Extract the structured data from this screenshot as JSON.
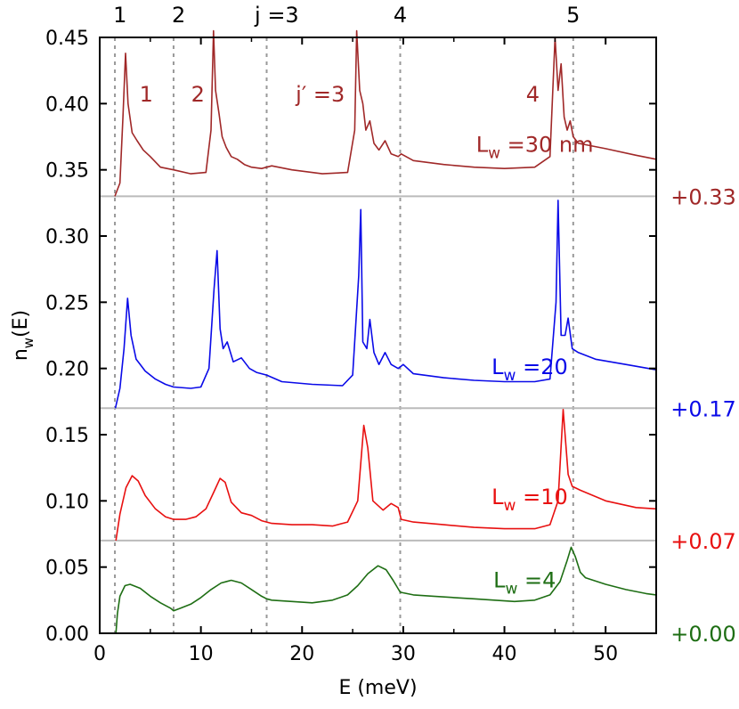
{
  "chart_data": {
    "type": "line",
    "title": "",
    "xlabel": "E (meV)",
    "ylabel_main": "n",
    "ylabel_sub": "w",
    "ylabel_tail": "(E)",
    "xlim": [
      0,
      55
    ],
    "ylim": [
      0,
      0.45
    ],
    "xticks": [
      0,
      10,
      20,
      30,
      40,
      50
    ],
    "yticks": [
      0.0,
      0.05,
      0.1,
      0.15,
      0.2,
      0.25,
      0.3,
      0.35,
      0.4,
      0.45
    ],
    "ytick_labels": [
      "0.00",
      "0.05",
      "0.10",
      "0.15",
      "0.20",
      "0.25",
      "0.30",
      "0.35",
      "0.40",
      "0.45"
    ],
    "xtick_labels": [
      "0",
      "10",
      "20",
      "30",
      "40",
      "50"
    ],
    "vlines": [
      1.5,
      7.3,
      16.5,
      29.7,
      46.8
    ],
    "top_labels": [
      {
        "text": "1",
        "x": 2.0
      },
      {
        "text": "2",
        "x": 7.8
      },
      {
        "text": "j =3",
        "x": 17.5
      },
      {
        "text": "4",
        "x": 29.7
      },
      {
        "text": "5",
        "x": 46.8
      }
    ],
    "series": [
      {
        "name": "Lw=4",
        "offset": 0.0,
        "color": "#1e6e14",
        "label_main": "L",
        "label_sub": "w",
        "label_tail": " =4",
        "offset_label": "+0.00",
        "base": [
          [
            1.6,
            0.0
          ],
          [
            1.75,
            0.015
          ],
          [
            2.0,
            0.028
          ],
          [
            2.5,
            0.036
          ],
          [
            3.0,
            0.037
          ],
          [
            4.0,
            0.034
          ],
          [
            5.0,
            0.028
          ],
          [
            6.0,
            0.023
          ],
          [
            7.0,
            0.019
          ],
          [
            7.3,
            0.017
          ],
          [
            8.0,
            0.019
          ],
          [
            9.0,
            0.022
          ],
          [
            10.0,
            0.027
          ],
          [
            11.0,
            0.033
          ],
          [
            12.0,
            0.038
          ],
          [
            13.0,
            0.04
          ],
          [
            14.0,
            0.038
          ],
          [
            15.0,
            0.033
          ],
          [
            16.0,
            0.028
          ],
          [
            16.5,
            0.026
          ],
          [
            17.0,
            0.025
          ],
          [
            19.0,
            0.024
          ],
          [
            21.0,
            0.023
          ],
          [
            23.0,
            0.025
          ],
          [
            24.5,
            0.029
          ],
          [
            25.5,
            0.036
          ],
          [
            26.5,
            0.045
          ],
          [
            27.5,
            0.051
          ],
          [
            28.3,
            0.048
          ],
          [
            29.0,
            0.04
          ],
          [
            29.7,
            0.031
          ],
          [
            31.0,
            0.029
          ],
          [
            33.0,
            0.028
          ],
          [
            35.0,
            0.027
          ],
          [
            37.0,
            0.026
          ],
          [
            39.0,
            0.025
          ],
          [
            41.0,
            0.024
          ],
          [
            43.0,
            0.025
          ],
          [
            44.5,
            0.029
          ],
          [
            45.5,
            0.039
          ],
          [
            46.2,
            0.055
          ],
          [
            46.6,
            0.065
          ],
          [
            47.0,
            0.058
          ],
          [
            47.5,
            0.046
          ],
          [
            48.0,
            0.042
          ],
          [
            50.0,
            0.037
          ],
          [
            52.0,
            0.033
          ],
          [
            54.0,
            0.03
          ],
          [
            55.0,
            0.029
          ]
        ],
        "peaks": []
      },
      {
        "name": "Lw=10",
        "offset": 0.07,
        "color": "#e81010",
        "label_main": "L",
        "label_sub": "w",
        "label_tail": " =10",
        "offset_label": "+0.07",
        "base": [
          [
            1.6,
            0.0
          ],
          [
            2.0,
            0.02
          ],
          [
            2.6,
            0.04
          ],
          [
            3.2,
            0.049
          ],
          [
            3.8,
            0.045
          ],
          [
            4.5,
            0.034
          ],
          [
            5.5,
            0.024
          ],
          [
            6.5,
            0.018
          ],
          [
            7.3,
            0.016
          ],
          [
            8.5,
            0.016
          ],
          [
            9.5,
            0.018
          ],
          [
            10.5,
            0.024
          ],
          [
            11.3,
            0.037
          ],
          [
            11.9,
            0.047
          ],
          [
            12.4,
            0.044
          ],
          [
            13.0,
            0.029
          ],
          [
            14.0,
            0.021
          ],
          [
            15.0,
            0.019
          ],
          [
            16.0,
            0.015
          ],
          [
            17.0,
            0.013
          ],
          [
            19.0,
            0.012
          ],
          [
            21.0,
            0.012
          ],
          [
            23.0,
            0.011
          ],
          [
            24.5,
            0.014
          ],
          [
            25.5,
            0.03
          ],
          [
            26.1,
            0.087
          ],
          [
            26.5,
            0.07
          ],
          [
            27.0,
            0.03
          ],
          [
            28.0,
            0.023
          ],
          [
            28.8,
            0.028
          ],
          [
            29.5,
            0.025
          ],
          [
            29.8,
            0.016
          ],
          [
            31.0,
            0.014
          ],
          [
            34.0,
            0.012
          ],
          [
            37.0,
            0.01
          ],
          [
            40.0,
            0.009
          ],
          [
            43.0,
            0.009
          ],
          [
            44.5,
            0.012
          ],
          [
            45.3,
            0.03
          ],
          [
            45.8,
            0.099
          ],
          [
            46.3,
            0.05
          ],
          [
            46.7,
            0.041
          ],
          [
            47.5,
            0.038
          ],
          [
            50.0,
            0.03
          ],
          [
            53.0,
            0.025
          ],
          [
            55.0,
            0.024
          ]
        ],
        "peaks": []
      },
      {
        "name": "Lw=20",
        "offset": 0.17,
        "color": "#0a0ae8",
        "label_main": "L",
        "label_sub": "w",
        "label_tail": " =20",
        "offset_label": "+0.17",
        "base": [
          [
            1.55,
            0.0
          ],
          [
            2.0,
            0.015
          ],
          [
            2.4,
            0.045
          ],
          [
            2.75,
            0.083
          ],
          [
            3.1,
            0.055
          ],
          [
            3.6,
            0.037
          ],
          [
            4.0,
            0.033
          ],
          [
            4.5,
            0.028
          ],
          [
            5.5,
            0.022
          ],
          [
            6.5,
            0.018
          ],
          [
            7.3,
            0.016
          ],
          [
            9.0,
            0.015
          ],
          [
            10.0,
            0.016
          ],
          [
            10.8,
            0.03
          ],
          [
            11.3,
            0.09
          ],
          [
            11.6,
            0.119
          ],
          [
            11.9,
            0.06
          ],
          [
            12.2,
            0.045
          ],
          [
            12.6,
            0.05
          ],
          [
            13.2,
            0.035
          ],
          [
            14.0,
            0.038
          ],
          [
            14.8,
            0.03
          ],
          [
            15.5,
            0.027
          ],
          [
            16.5,
            0.025
          ],
          [
            18.0,
            0.02
          ],
          [
            21.0,
            0.018
          ],
          [
            24.0,
            0.017
          ],
          [
            25.0,
            0.025
          ],
          [
            25.6,
            0.1
          ],
          [
            25.8,
            0.15
          ],
          [
            26.0,
            0.05
          ],
          [
            26.4,
            0.045
          ],
          [
            26.7,
            0.067
          ],
          [
            27.1,
            0.042
          ],
          [
            27.6,
            0.033
          ],
          [
            28.2,
            0.042
          ],
          [
            28.8,
            0.033
          ],
          [
            29.5,
            0.03
          ],
          [
            30.0,
            0.033
          ],
          [
            31.0,
            0.026
          ],
          [
            34.0,
            0.023
          ],
          [
            37.0,
            0.021
          ],
          [
            40.0,
            0.02
          ],
          [
            43.0,
            0.02
          ],
          [
            44.5,
            0.022
          ],
          [
            45.1,
            0.08
          ],
          [
            45.3,
            0.157
          ],
          [
            45.6,
            0.055
          ],
          [
            46.0,
            0.055
          ],
          [
            46.3,
            0.068
          ],
          [
            46.7,
            0.045
          ],
          [
            47.3,
            0.042
          ],
          [
            49.0,
            0.037
          ],
          [
            52.0,
            0.033
          ],
          [
            55.0,
            0.029
          ]
        ],
        "peaks": []
      },
      {
        "name": "Lw=30 nm",
        "offset": 0.33,
        "color": "#a02828",
        "label_main": "L",
        "label_sub": "w",
        "label_tail": " =30 nm",
        "offset_label": "+0.33",
        "base": [
          [
            1.5,
            0.0
          ],
          [
            2.0,
            0.01
          ],
          [
            2.3,
            0.06
          ],
          [
            2.55,
            0.108
          ],
          [
            2.8,
            0.07
          ],
          [
            3.2,
            0.048
          ],
          [
            3.7,
            0.042
          ],
          [
            4.3,
            0.035
          ],
          [
            5.0,
            0.03
          ],
          [
            6.0,
            0.022
          ],
          [
            7.3,
            0.02
          ],
          [
            9.0,
            0.017
          ],
          [
            10.5,
            0.018
          ],
          [
            11.0,
            0.05
          ],
          [
            11.25,
            0.125
          ],
          [
            11.45,
            0.08
          ],
          [
            11.8,
            0.062
          ],
          [
            12.1,
            0.045
          ],
          [
            12.5,
            0.037
          ],
          [
            13.0,
            0.03
          ],
          [
            13.6,
            0.028
          ],
          [
            14.3,
            0.024
          ],
          [
            15.0,
            0.022
          ],
          [
            16.0,
            0.021
          ],
          [
            17.0,
            0.023
          ],
          [
            19.0,
            0.02
          ],
          [
            22.0,
            0.017
          ],
          [
            24.5,
            0.018
          ],
          [
            25.2,
            0.05
          ],
          [
            25.4,
            0.125
          ],
          [
            25.7,
            0.08
          ],
          [
            26.0,
            0.07
          ],
          [
            26.3,
            0.05
          ],
          [
            26.7,
            0.057
          ],
          [
            27.1,
            0.04
          ],
          [
            27.6,
            0.035
          ],
          [
            28.2,
            0.042
          ],
          [
            28.8,
            0.032
          ],
          [
            29.5,
            0.03
          ],
          [
            29.8,
            0.032
          ],
          [
            31.0,
            0.027
          ],
          [
            34.0,
            0.024
          ],
          [
            37.0,
            0.022
          ],
          [
            40.0,
            0.021
          ],
          [
            43.0,
            0.022
          ],
          [
            44.5,
            0.03
          ],
          [
            45.0,
            0.12
          ],
          [
            45.3,
            0.08
          ],
          [
            45.6,
            0.1
          ],
          [
            45.9,
            0.06
          ],
          [
            46.2,
            0.05
          ],
          [
            46.5,
            0.057
          ],
          [
            46.8,
            0.045
          ],
          [
            47.3,
            0.04
          ],
          [
            50.0,
            0.036
          ],
          [
            53.0,
            0.031
          ],
          [
            55.0,
            0.028
          ]
        ],
        "peaks": []
      }
    ],
    "curve_annotations": [
      {
        "text": "1",
        "x": 4.6,
        "y": 0.407,
        "color": "#a02828"
      },
      {
        "text": "2",
        "x": 9.7,
        "y": 0.407,
        "color": "#a02828"
      },
      {
        "text": "j′ =3",
        "x": 21.8,
        "y": 0.407,
        "color": "#a02828"
      },
      {
        "text": "4",
        "x": 42.8,
        "y": 0.407,
        "color": "#a02828"
      }
    ],
    "series_label_positions": [
      {
        "x": 42.0,
        "y": 0.04
      },
      {
        "x": 42.5,
        "y": 0.103
      },
      {
        "x": 42.5,
        "y": 0.201
      },
      {
        "x": 43.0,
        "y": 0.369
      }
    ]
  }
}
